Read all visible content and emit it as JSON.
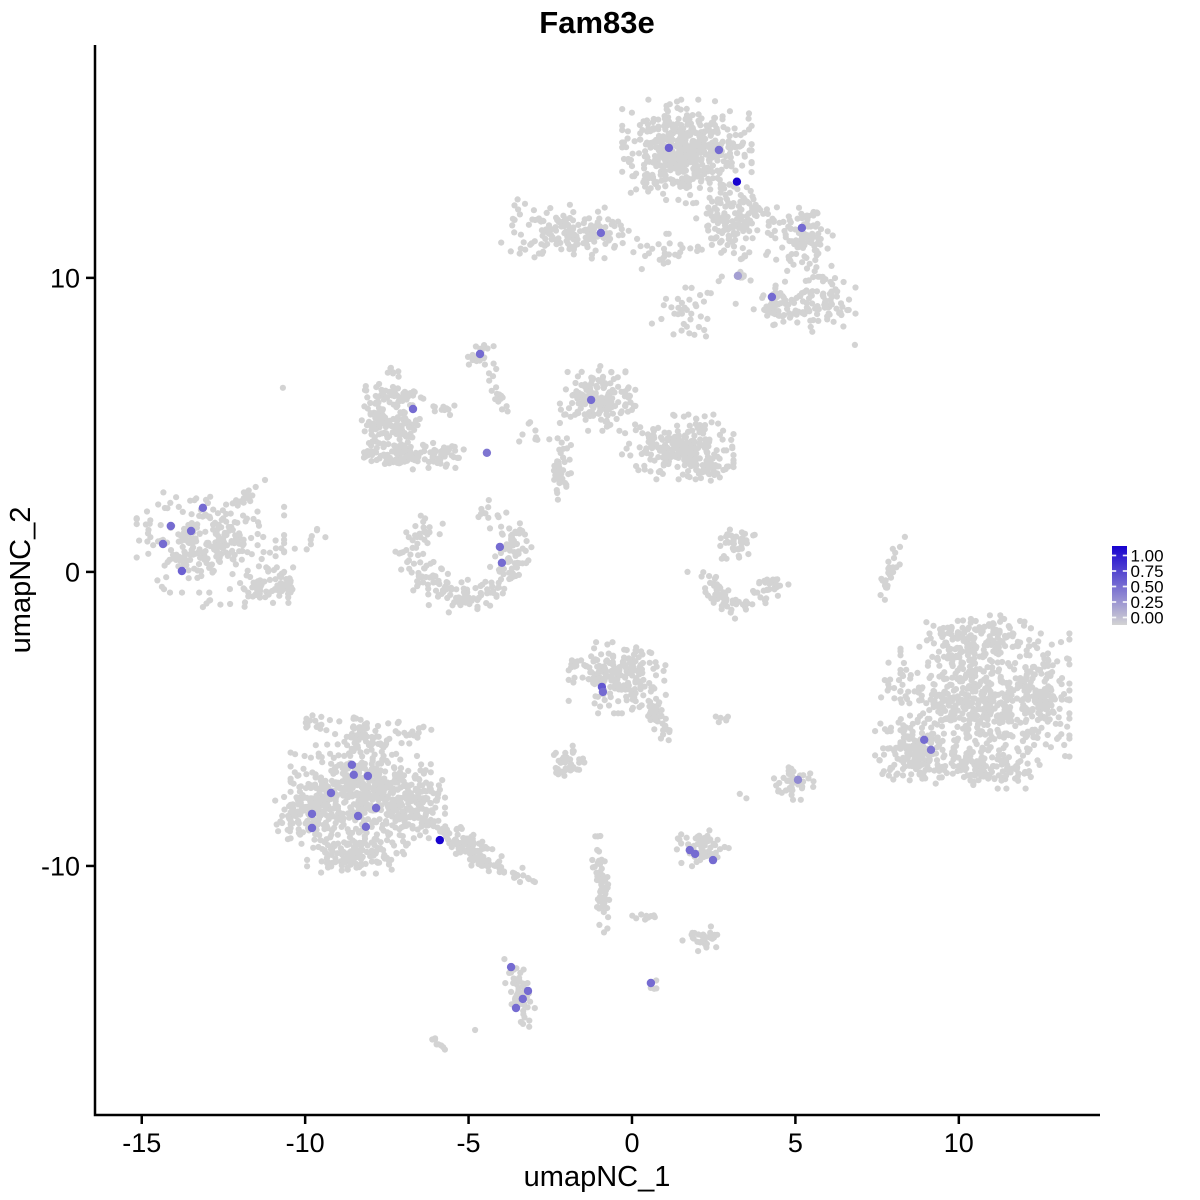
{
  "title": "Fam83e",
  "chart_data": {
    "type": "scatter",
    "title": "Fam83e",
    "xlabel": "umapNC_1",
    "ylabel": "umapNC_2",
    "xlim": [
      -16.43,
      14.32
    ],
    "ylim": [
      -18.47,
      17.92
    ],
    "x_ticks": [
      -15,
      -10,
      -5,
      0,
      5,
      10
    ],
    "y_ticks": [
      10,
      0,
      -10
    ],
    "grid": false,
    "point_color_base": "#d3d3d3",
    "legend": {
      "position": "right",
      "ticks": [
        "1.00",
        "0.75",
        "0.50",
        "0.25",
        "0.00"
      ],
      "values": [
        1.0,
        0.75,
        0.5,
        0.25,
        0.0
      ],
      "color_low": "#d3d3d3",
      "color_high": "#1702cf"
    },
    "clusters": [
      {
        "cx": 1.68,
        "cy": 14.3,
        "rx": 1.8,
        "ry": 1.6,
        "n": 520
      },
      {
        "cx": 2.9,
        "cy": 11.9,
        "rx": 0.85,
        "ry": 1.15,
        "n": 110
      },
      {
        "cx": 3.7,
        "cy": 12.4,
        "rx": 0.7,
        "ry": 0.3,
        "rot": -55,
        "n": 30
      },
      {
        "cx": 5.15,
        "cy": 11.6,
        "rx": 0.9,
        "ry": 0.8,
        "n": 85
      },
      {
        "cx": 5.15,
        "cy": 10.5,
        "rx": 1.05,
        "ry": 0.45,
        "n": 20
      },
      {
        "cx": 1.8,
        "cy": 9.0,
        "rx": 1.25,
        "ry": 0.95,
        "n": 38
      },
      {
        "cx": 4.45,
        "cy": 9.1,
        "rx": 0.75,
        "ry": 0.7,
        "n": 60
      },
      {
        "cx": 5.85,
        "cy": 9.1,
        "rx": 0.9,
        "ry": 0.85,
        "n": 80
      },
      {
        "cx": 3.3,
        "cy": 10.05,
        "rx": 0.3,
        "ry": 0.25,
        "n": 6
      },
      {
        "cx": -1.75,
        "cy": 11.6,
        "rx": 1.75,
        "ry": 0.8,
        "rot": -6,
        "n": 150
      },
      {
        "cx": 1.2,
        "cy": 10.95,
        "rx": 0.85,
        "ry": 0.5,
        "n": 26
      },
      {
        "cx": -3.25,
        "cy": 10.9,
        "rx": 0.5,
        "ry": 0.5,
        "n": 8
      },
      {
        "cx": -4.65,
        "cy": 7.4,
        "rx": 0.45,
        "ry": 0.55,
        "n": 22
      },
      {
        "cx": -4.13,
        "cy": 6.0,
        "rx": 0.85,
        "ry": 0.2,
        "rot": -70,
        "n": 16
      },
      {
        "cx": -7.25,
        "cy": 6.0,
        "rx": 0.85,
        "ry": 0.35,
        "rot": -10,
        "n": 55
      },
      {
        "cx": -7.85,
        "cy": 5.0,
        "rx": 0.38,
        "ry": 0.85,
        "n": 65
      },
      {
        "cx": -7.1,
        "cy": 3.95,
        "rx": 1.0,
        "ry": 0.42,
        "n": 85
      },
      {
        "cx": -7.1,
        "cy": 4.9,
        "rx": 0.55,
        "ry": 0.55,
        "n": 55
      },
      {
        "cx": -5.8,
        "cy": 4.0,
        "rx": 0.6,
        "ry": 0.42,
        "n": 40
      },
      {
        "cx": -5.75,
        "cy": 5.5,
        "rx": 0.6,
        "ry": 0.2,
        "n": 10
      },
      {
        "cx": -7.1,
        "cy": 6.8,
        "rx": 0.6,
        "ry": 0.3,
        "n": 7
      },
      {
        "cx": -1.05,
        "cy": 5.9,
        "rx": 1.05,
        "ry": 1.0,
        "n": 165
      },
      {
        "cx": 1.4,
        "cy": 4.25,
        "rx": 1.55,
        "ry": 1.0,
        "n": 235
      },
      {
        "cx": 2.4,
        "cy": 3.5,
        "rx": 0.5,
        "ry": 0.38,
        "n": 35
      },
      {
        "cx": -2.2,
        "cy": 3.5,
        "rx": 0.3,
        "ry": 0.95,
        "n": 40
      },
      {
        "cx": -2.9,
        "cy": 4.65,
        "rx": 0.5,
        "ry": 0.4,
        "n": 9
      },
      {
        "type": "arc",
        "cx": -5.11,
        "cy": 0.72,
        "r": 1.55,
        "w": 0.55,
        "a0": 150,
        "a1": 390,
        "n": 200
      },
      {
        "cx": -6.2,
        "cy": 1.4,
        "rx": 0.5,
        "ry": 0.5,
        "n": 10
      },
      {
        "cx": -4.45,
        "cy": 1.9,
        "rx": 0.55,
        "ry": 0.75,
        "n": 13
      },
      {
        "cx": -12.9,
        "cy": 1.0,
        "rx": 2.05,
        "ry": 1.55,
        "n": 270
      },
      {
        "cx": -11.0,
        "cy": -0.45,
        "rx": 0.9,
        "ry": 0.55,
        "n": 70
      },
      {
        "cx": -11.75,
        "cy": 2.55,
        "rx": 0.7,
        "ry": 0.22,
        "rot": 40,
        "n": 16
      },
      {
        "cx": -9.85,
        "cy": 1.1,
        "rx": 0.5,
        "ry": 0.5,
        "n": 8
      },
      {
        "cx": -12.6,
        "cy": -1.1,
        "rx": 0.7,
        "ry": 0.25,
        "n": 7
      },
      {
        "cx": 3.2,
        "cy": 1.0,
        "rx": 0.55,
        "ry": 0.5,
        "n": 40
      },
      {
        "type": "arc",
        "cx": 3.3,
        "cy": -0.1,
        "r": 1.05,
        "w": 0.45,
        "a0": 175,
        "a1": 355,
        "n": 80
      },
      {
        "cx": 7.95,
        "cy": 0.2,
        "rx": 0.95,
        "ry": 0.2,
        "rot": 75,
        "n": 26
      },
      {
        "cx": 10.8,
        "cy": -4.35,
        "rx": 2.35,
        "ry": 2.05,
        "n": 560
      },
      {
        "cx": 10.5,
        "cy": -2.3,
        "rx": 1.55,
        "ry": 0.75,
        "n": 130
      },
      {
        "cx": 8.65,
        "cy": -6.1,
        "rx": 1.1,
        "ry": 1.0,
        "n": 160
      },
      {
        "cx": 10.9,
        "cy": -6.6,
        "rx": 1.5,
        "ry": 0.7,
        "n": 120
      },
      {
        "cx": 12.6,
        "cy": -4.3,
        "rx": 0.65,
        "ry": 1.2,
        "n": 80
      },
      {
        "cx": 8.1,
        "cy": -3.8,
        "rx": 0.6,
        "ry": 0.7,
        "n": 18
      },
      {
        "cx": -0.45,
        "cy": -3.6,
        "rx": 1.35,
        "ry": 1.1,
        "n": 210
      },
      {
        "cx": 0.85,
        "cy": -5.05,
        "rx": 0.75,
        "ry": 0.26,
        "rot": -64,
        "n": 38
      },
      {
        "cx": 2.75,
        "cy": -5.0,
        "rx": 0.3,
        "ry": 0.2,
        "n": 6
      },
      {
        "cx": -1.9,
        "cy": -6.4,
        "rx": 0.6,
        "ry": 0.55,
        "n": 38
      },
      {
        "cx": -8.25,
        "cy": -5.5,
        "rx": 1.0,
        "ry": 0.5,
        "n": 70
      },
      {
        "cx": -8.3,
        "cy": -7.6,
        "rx": 1.95,
        "ry": 1.55,
        "n": 470
      },
      {
        "cx": -10.0,
        "cy": -8.2,
        "rx": 0.85,
        "ry": 0.95,
        "n": 120
      },
      {
        "cx": -8.4,
        "cy": -9.6,
        "rx": 1.4,
        "ry": 0.6,
        "n": 130
      },
      {
        "cx": -6.6,
        "cy": -7.9,
        "rx": 0.8,
        "ry": 1.05,
        "n": 130
      },
      {
        "cx": -9.7,
        "cy": -5.1,
        "rx": 0.5,
        "ry": 0.3,
        "n": 14
      },
      {
        "cx": -6.8,
        "cy": -5.4,
        "rx": 0.6,
        "ry": 0.4,
        "n": 18
      },
      {
        "cx": -4.9,
        "cy": -9.45,
        "rx": 1.45,
        "ry": 0.38,
        "rot": -40,
        "n": 130
      },
      {
        "cx": -3.35,
        "cy": -10.4,
        "rx": 0.5,
        "ry": 0.25,
        "rot": -35,
        "n": 12
      },
      {
        "cx": 2.15,
        "cy": -9.45,
        "rx": 0.75,
        "ry": 0.6,
        "n": 60
      },
      {
        "cx": 4.95,
        "cy": -7.2,
        "rx": 0.55,
        "ry": 0.5,
        "n": 40
      },
      {
        "cx": -0.9,
        "cy": -10.5,
        "rx": 1.6,
        "ry": 0.24,
        "rot": -86,
        "n": 55
      },
      {
        "cx": 0.45,
        "cy": -11.75,
        "rx": 0.4,
        "ry": 0.15,
        "n": 9
      },
      {
        "cx": 2.15,
        "cy": -12.5,
        "rx": 0.6,
        "ry": 0.4,
        "n": 32
      },
      {
        "cx": 0.6,
        "cy": -14.0,
        "rx": 0.28,
        "ry": 0.22,
        "n": 5
      },
      {
        "cx": -3.45,
        "cy": -14.3,
        "rx": 1.1,
        "ry": 0.3,
        "rot": -75,
        "n": 60
      },
      {
        "cx": -6.0,
        "cy": -16.0,
        "rx": 0.35,
        "ry": 0.12,
        "rot": -40,
        "n": 8
      }
    ],
    "singles": [
      [
        -10.68,
        6.26
      ],
      [
        6.82,
        7.72
      ],
      [
        8.35,
        1.19
      ],
      [
        -4.8,
        -15.58
      ],
      [
        3.3,
        -7.55
      ],
      [
        3.5,
        -7.7
      ],
      [
        0.0,
        13.8
      ],
      [
        -0.1,
        11.6
      ],
      [
        0.3,
        10.3
      ],
      [
        0.9,
        8.6
      ],
      [
        -3.0,
        12.3
      ],
      [
        -4.0,
        11.2
      ],
      [
        1.7,
        0.0
      ],
      [
        7.74,
        -0.95
      ]
    ],
    "expressing_cells": [
      {
        "x": 1.13,
        "y": 14.42,
        "v": 0.55
      },
      {
        "x": 2.66,
        "y": 14.35,
        "v": 0.5
      },
      {
        "x": 3.21,
        "y": 13.27,
        "v": 1.0
      },
      {
        "x": -0.95,
        "y": 11.53,
        "v": 0.5
      },
      {
        "x": 5.2,
        "y": 11.7,
        "v": 0.5
      },
      {
        "x": 3.24,
        "y": 10.07,
        "v": 0.25
      },
      {
        "x": 4.28,
        "y": 9.35,
        "v": 0.5
      },
      {
        "x": -4.65,
        "y": 7.41,
        "v": 0.5
      },
      {
        "x": -6.7,
        "y": 5.54,
        "v": 0.5
      },
      {
        "x": -1.25,
        "y": 5.85,
        "v": 0.5
      },
      {
        "x": -4.44,
        "y": 4.05,
        "v": 0.45
      },
      {
        "x": -13.13,
        "y": 2.18,
        "v": 0.5
      },
      {
        "x": -14.11,
        "y": 1.56,
        "v": 0.5
      },
      {
        "x": -13.49,
        "y": 1.39,
        "v": 0.5
      },
      {
        "x": -14.35,
        "y": 0.95,
        "v": 0.5
      },
      {
        "x": -13.77,
        "y": 0.03,
        "v": 0.55
      },
      {
        "x": -4.04,
        "y": 0.85,
        "v": 0.5
      },
      {
        "x": -3.98,
        "y": 0.31,
        "v": 0.5
      },
      {
        "x": -0.92,
        "y": -3.91,
        "v": 0.6
      },
      {
        "x": -0.89,
        "y": -4.08,
        "v": 0.5
      },
      {
        "x": 8.94,
        "y": -5.71,
        "v": 0.5
      },
      {
        "x": 9.15,
        "y": -6.05,
        "v": 0.45
      },
      {
        "x": 5.08,
        "y": -7.07,
        "v": 0.35
      },
      {
        "x": -8.57,
        "y": -6.56,
        "v": 0.5
      },
      {
        "x": -8.51,
        "y": -6.9,
        "v": 0.5
      },
      {
        "x": -8.08,
        "y": -6.94,
        "v": 0.5
      },
      {
        "x": -9.21,
        "y": -7.52,
        "v": 0.5
      },
      {
        "x": -7.83,
        "y": -8.03,
        "v": 0.5
      },
      {
        "x": -8.38,
        "y": -8.3,
        "v": 0.5
      },
      {
        "x": -9.79,
        "y": -8.23,
        "v": 0.5
      },
      {
        "x": -9.79,
        "y": -8.71,
        "v": 0.5
      },
      {
        "x": -8.14,
        "y": -8.67,
        "v": 0.5
      },
      {
        "x": -5.88,
        "y": -9.12,
        "v": 1.0
      },
      {
        "x": 1.77,
        "y": -9.46,
        "v": 0.5
      },
      {
        "x": 1.93,
        "y": -9.59,
        "v": 0.5
      },
      {
        "x": 2.48,
        "y": -9.8,
        "v": 0.5
      },
      {
        "x": -3.7,
        "y": -13.44,
        "v": 0.5
      },
      {
        "x": -3.18,
        "y": -14.25,
        "v": 0.5
      },
      {
        "x": -3.34,
        "y": -14.52,
        "v": 0.5
      },
      {
        "x": -3.55,
        "y": -14.83,
        "v": 0.5
      },
      {
        "x": 0.58,
        "y": -13.98,
        "v": 0.5
      }
    ],
    "seed": 42
  }
}
